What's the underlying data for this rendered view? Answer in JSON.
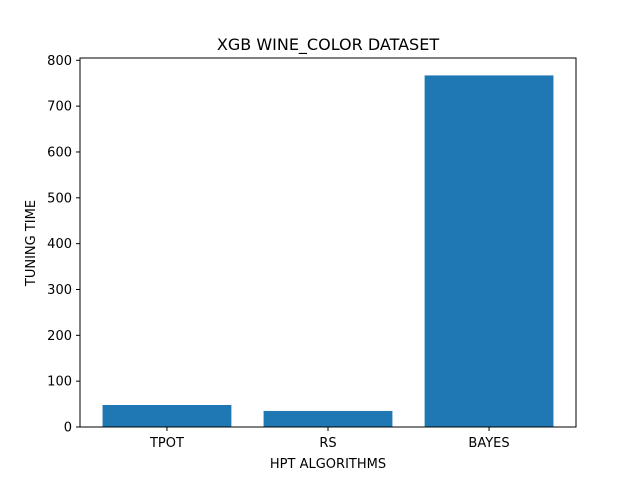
{
  "chart_data": {
    "type": "bar",
    "title": "XGB WINE_COLOR DATASET",
    "xlabel": "HPT ALGORITHMS",
    "ylabel": "TUNING TIME",
    "categories": [
      "TPOT",
      "RS",
      "BAYES"
    ],
    "values": [
      48,
      35,
      767
    ],
    "ylim": [
      0,
      805
    ],
    "yticks": [
      0,
      100,
      200,
      300,
      400,
      500,
      600,
      700,
      800
    ],
    "grid": false,
    "bar_color": "#1f77b4"
  }
}
